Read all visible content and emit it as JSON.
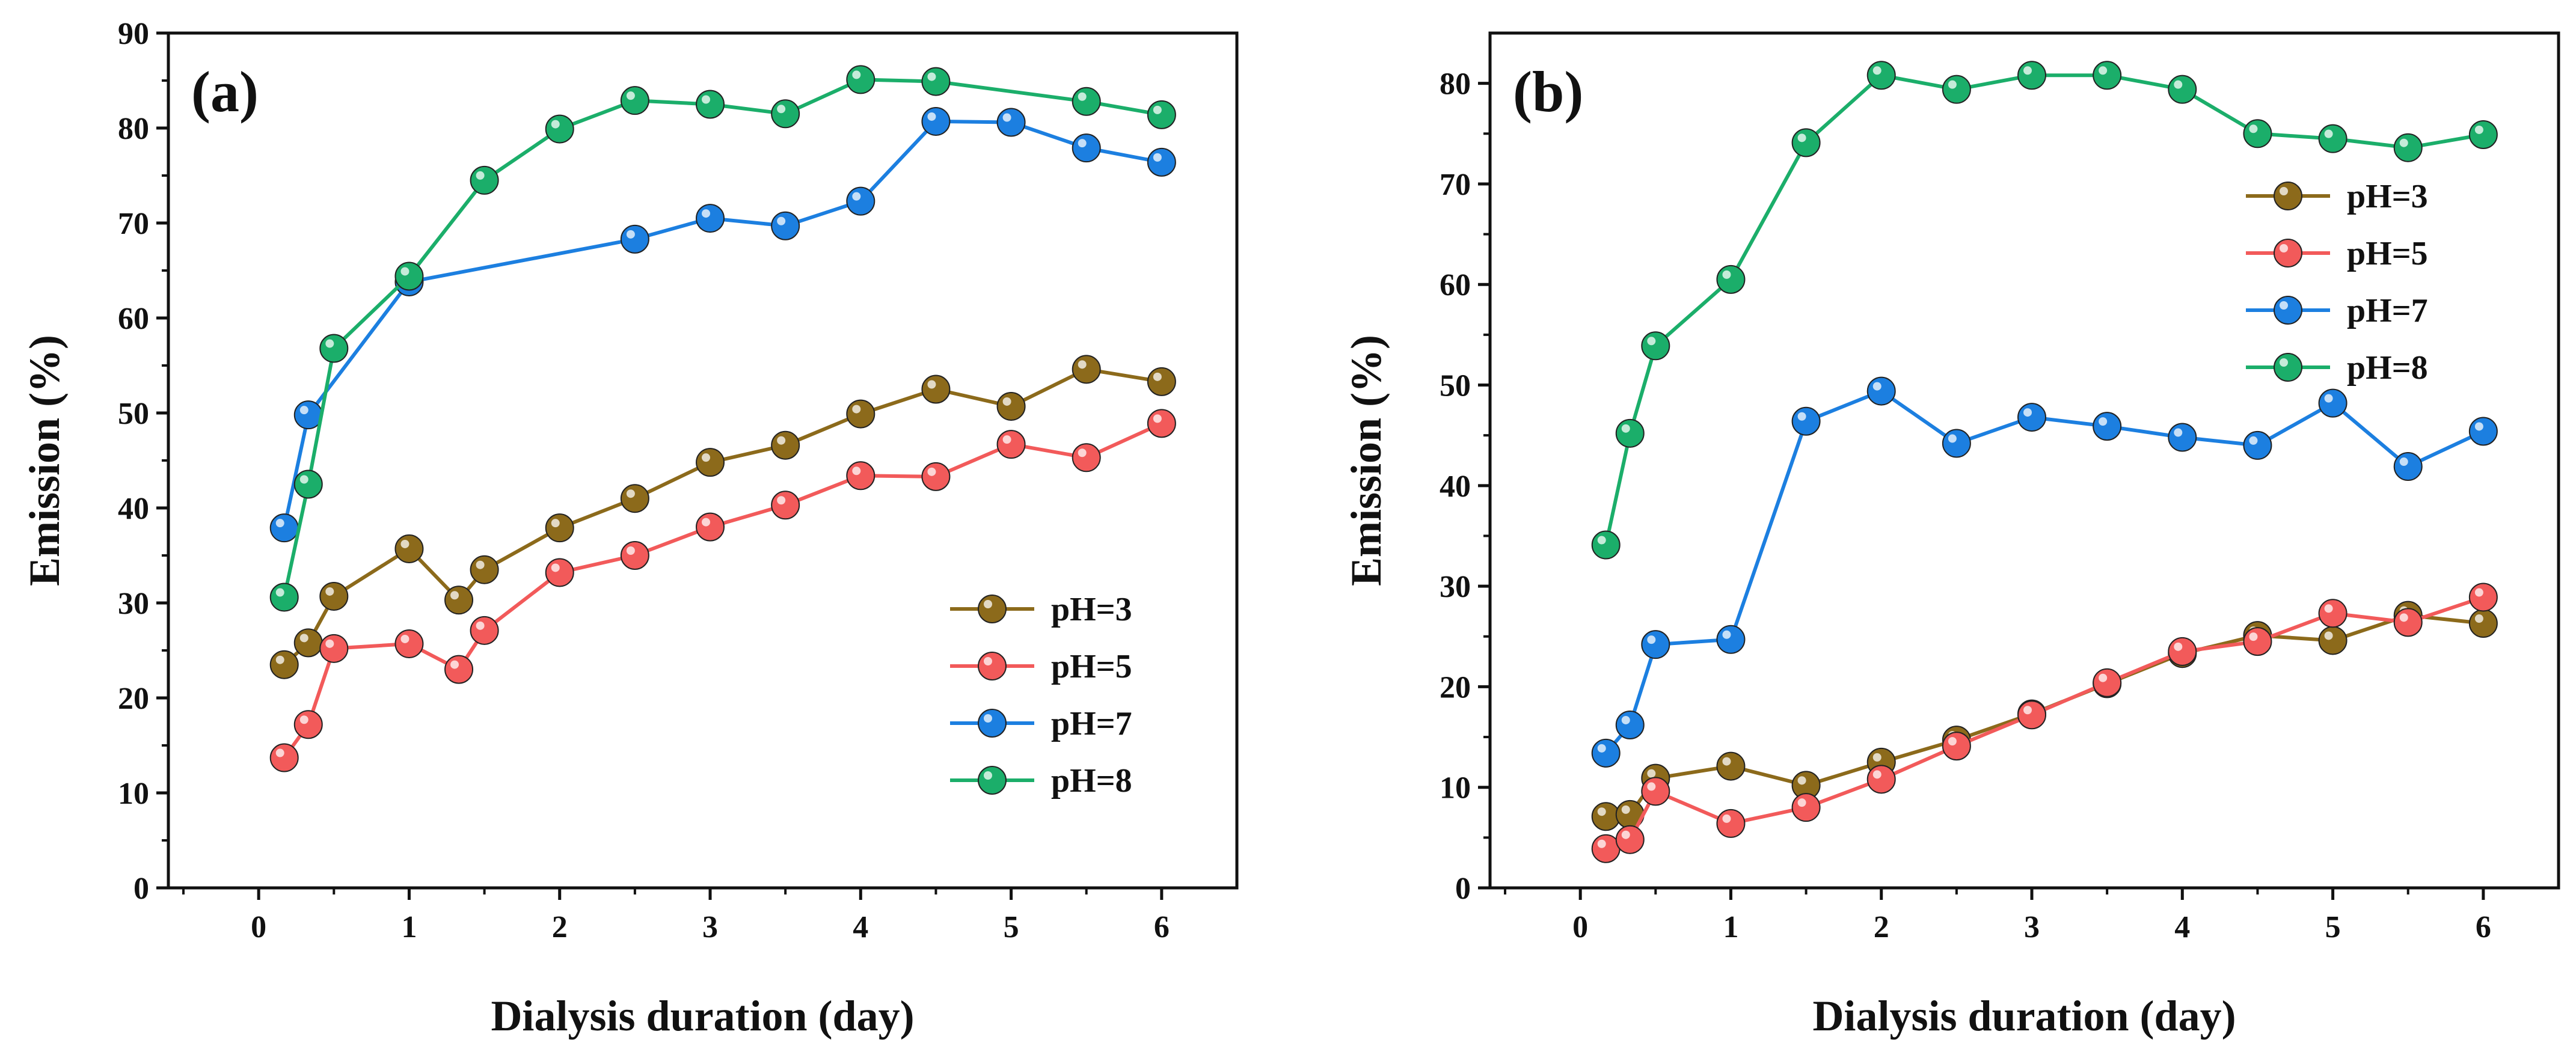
{
  "chart_data": [
    {
      "type": "line",
      "panel_label": "(a)",
      "xlabel": "Dialysis duration (day)",
      "ylabel": "Emission (%)",
      "xlim": [
        -0.6,
        6.5
      ],
      "ylim": [
        0,
        90
      ],
      "xticks": [
        0,
        1,
        2,
        3,
        4,
        5,
        6
      ],
      "yticks": [
        0,
        10,
        20,
        30,
        40,
        50,
        60,
        70,
        80,
        90
      ],
      "legend_position": "bottom-right",
      "series": [
        {
          "name": "pH=3",
          "color": "#8C6A1B",
          "points": [
            [
              0.17,
              23.5
            ],
            [
              0.33,
              25.8
            ],
            [
              0.5,
              30.7
            ],
            [
              1,
              35.7
            ],
            [
              1.33,
              30.3
            ],
            [
              1.5,
              33.5
            ],
            [
              2,
              37.9
            ],
            [
              2.5,
              41
            ],
            [
              3,
              44.8
            ],
            [
              3.5,
              46.6
            ],
            [
              4,
              49.9
            ],
            [
              4.5,
              52.5
            ],
            [
              5,
              50.7
            ],
            [
              5.5,
              54.6
            ],
            [
              6,
              53.3
            ]
          ]
        },
        {
          "name": "pH=5",
          "color": "#F25A5A",
          "points": [
            [
              0.17,
              13.7
            ],
            [
              0.33,
              17.2
            ],
            [
              0.5,
              25.2
            ],
            [
              1,
              25.7
            ],
            [
              1.33,
              23
            ],
            [
              1.5,
              27.1
            ],
            [
              2,
              33.2
            ],
            [
              2.5,
              35
            ],
            [
              3,
              38
            ],
            [
              3.5,
              40.3
            ],
            [
              4,
              43.4
            ],
            [
              4.5,
              43.3
            ],
            [
              5,
              46.7
            ],
            [
              5.5,
              45.3
            ],
            [
              6,
              48.9
            ]
          ]
        },
        {
          "name": "pH=7",
          "color": "#1C7FE0",
          "points": [
            [
              0.17,
              37.9
            ],
            [
              0.33,
              49.8
            ],
            [
              1,
              63.8
            ],
            [
              2.5,
              68.3
            ],
            [
              3,
              70.5
            ],
            [
              3.5,
              69.7
            ],
            [
              4,
              72.3
            ],
            [
              4.5,
              80.7
            ],
            [
              5,
              80.6
            ],
            [
              5.5,
              77.9
            ],
            [
              6,
              76.4
            ]
          ]
        },
        {
          "name": "pH=8",
          "color": "#1BAE6A",
          "points": [
            [
              0.17,
              30.6
            ],
            [
              0.33,
              42.5
            ],
            [
              0.5,
              56.8
            ],
            [
              1,
              64.4
            ],
            [
              1.5,
              74.5
            ],
            [
              2,
              79.9
            ],
            [
              2.5,
              82.9
            ],
            [
              3,
              82.5
            ],
            [
              3.5,
              81.5
            ],
            [
              4,
              85.1
            ],
            [
              4.5,
              84.9
            ],
            [
              5.5,
              82.8
            ],
            [
              6,
              81.4
            ]
          ]
        }
      ]
    },
    {
      "type": "line",
      "panel_label": "(b)",
      "xlabel": "Dialysis duration (day)",
      "ylabel": "Emission (%)",
      "xlim": [
        -0.6,
        6.5
      ],
      "ylim": [
        0,
        85
      ],
      "xticks": [
        0,
        1,
        2,
        3,
        4,
        5,
        6
      ],
      "yticks": [
        0,
        10,
        20,
        30,
        40,
        50,
        60,
        70,
        80
      ],
      "legend_position": "top-right",
      "series": [
        {
          "name": "pH=3",
          "color": "#8C6A1B",
          "points": [
            [
              0.17,
              7.1
            ],
            [
              0.33,
              7.3
            ],
            [
              0.5,
              10.9
            ],
            [
              1,
              12.1
            ],
            [
              1.5,
              10.2
            ],
            [
              2,
              12.5
            ],
            [
              2.5,
              14.7
            ],
            [
              3,
              17.3
            ],
            [
              3.5,
              20.3
            ],
            [
              4,
              23.3
            ],
            [
              4.5,
              25.1
            ],
            [
              5,
              24.6
            ],
            [
              5.5,
              27.1
            ],
            [
              6,
              26.3
            ]
          ]
        },
        {
          "name": "pH=5",
          "color": "#F25A5A",
          "points": [
            [
              0.17,
              3.9
            ],
            [
              0.33,
              4.8
            ],
            [
              0.5,
              9.6
            ],
            [
              1,
              6.4
            ],
            [
              1.5,
              8
            ],
            [
              2,
              10.8
            ],
            [
              2.5,
              14.1
            ],
            [
              3,
              17.2
            ],
            [
              3.5,
              20.4
            ],
            [
              4,
              23.5
            ],
            [
              4.5,
              24.5
            ],
            [
              5,
              27.3
            ],
            [
              5.5,
              26.4
            ],
            [
              6,
              28.9
            ]
          ]
        },
        {
          "name": "pH=7",
          "color": "#1C7FE0",
          "points": [
            [
              0.17,
              13.4
            ],
            [
              0.33,
              16.2
            ],
            [
              0.5,
              24.2
            ],
            [
              1,
              24.7
            ],
            [
              1.5,
              46.4
            ],
            [
              2,
              49.4
            ],
            [
              2.5,
              44.2
            ],
            [
              3,
              46.8
            ],
            [
              3.5,
              45.9
            ],
            [
              4,
              44.8
            ],
            [
              4.5,
              44
            ],
            [
              5,
              48.2
            ],
            [
              5.5,
              41.9
            ],
            [
              6,
              45.4
            ]
          ]
        },
        {
          "name": "pH=8",
          "color": "#1BAE6A",
          "points": [
            [
              0.17,
              34.1
            ],
            [
              0.33,
              45.2
            ],
            [
              0.5,
              53.9
            ],
            [
              1,
              60.5
            ],
            [
              1.5,
              74.1
            ],
            [
              2,
              80.8
            ],
            [
              2.5,
              79.4
            ],
            [
              3,
              80.8
            ],
            [
              3.5,
              80.8
            ],
            [
              4,
              79.4
            ],
            [
              4.5,
              75
            ],
            [
              5,
              74.5
            ],
            [
              5.5,
              73.6
            ],
            [
              6,
              74.9
            ]
          ]
        }
      ]
    }
  ]
}
